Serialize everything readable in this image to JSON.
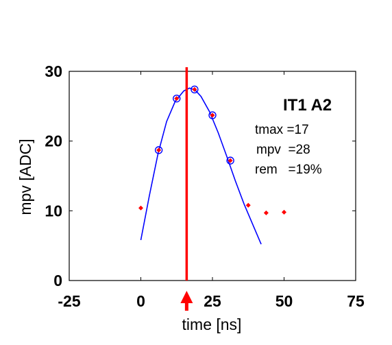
{
  "chart_data": {
    "type": "scatter",
    "xlabel": "time [ns]",
    "ylabel": "mpv [ADC]",
    "xlim": [
      -25,
      75
    ],
    "ylim": [
      0,
      30
    ],
    "xticks": [
      "-25",
      "0",
      "25",
      "50",
      "75"
    ],
    "yticks": [
      "0",
      "10",
      "20",
      "30"
    ],
    "series": [
      {
        "kind": "points",
        "color": "#ff0000",
        "x": [
          0,
          6.25,
          12.5,
          18.75,
          25,
          31.25,
          37.5,
          43.75,
          50
        ],
        "y": [
          10.4,
          18.7,
          26.1,
          27.4,
          23.7,
          17.2,
          10.8,
          9.7,
          9.8
        ]
      },
      {
        "kind": "fit-circles",
        "color": "#0000ff",
        "x": [
          6.25,
          12.5,
          18.75,
          25,
          31.25
        ],
        "y": [
          18.7,
          26.1,
          27.4,
          23.7,
          17.2
        ]
      },
      {
        "kind": "fit-curve",
        "color": "#0000ff",
        "x": [
          0,
          3,
          6,
          9,
          12,
          15,
          17,
          19,
          21,
          24,
          27,
          30,
          33,
          36,
          39,
          42
        ],
        "y": [
          5.8,
          12.2,
          18.2,
          22.8,
          25.7,
          27.2,
          27.6,
          27.3,
          26.4,
          24.2,
          21.2,
          17.8,
          14.3,
          11,
          8.1,
          5.2
        ]
      }
    ],
    "marker_line": {
      "x": 16,
      "color": "#ff0000"
    },
    "annotation": {
      "title": "IT1 A2",
      "lines": [
        "tmax =17",
        "mpv  =28",
        "rem   =19%"
      ]
    },
    "arrow": {
      "x": 16,
      "color": "#ff0000",
      "direction": "up"
    }
  }
}
